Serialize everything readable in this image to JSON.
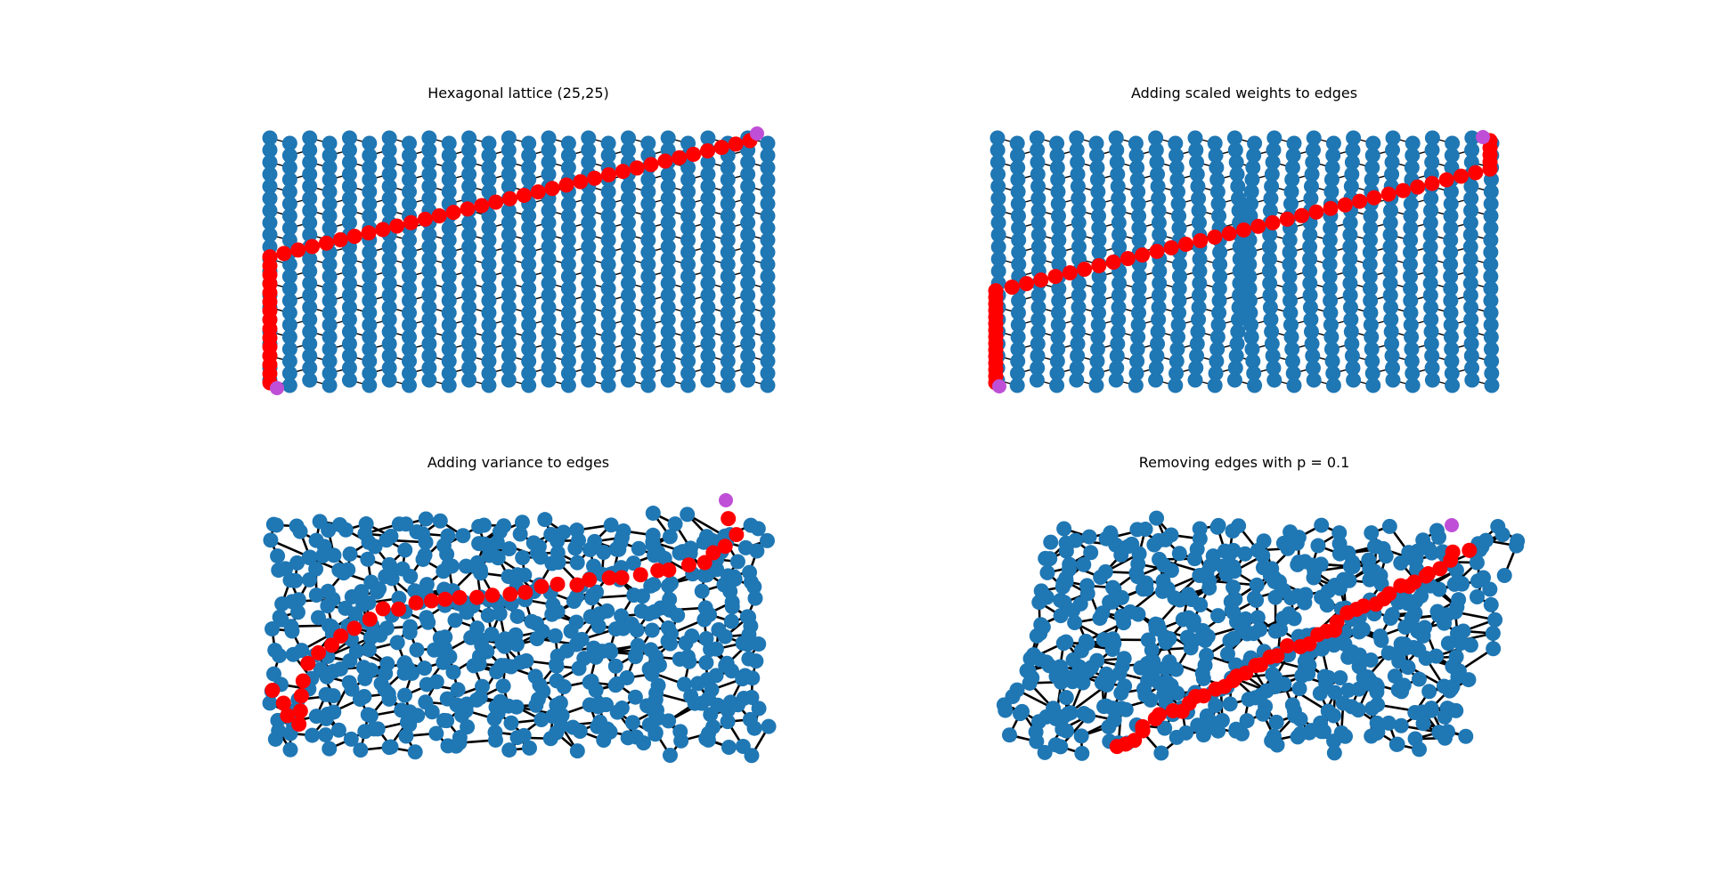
{
  "figure": {
    "panels": [
      {
        "title": "Hexagonal lattice (25,25)",
        "variant": "lattice"
      },
      {
        "title": "Adding scaled weights to edges",
        "variant": "scaled"
      },
      {
        "title": "Adding variance to edges",
        "variant": "variance"
      },
      {
        "title": "Removing edges with p = 0.1",
        "variant": "removed"
      }
    ],
    "colors": {
      "node": "#1f77b4",
      "path": "#ff0000",
      "endpoint": "#bf4fd6",
      "edge": "#000000"
    },
    "lattice_size": [
      25,
      25
    ]
  }
}
